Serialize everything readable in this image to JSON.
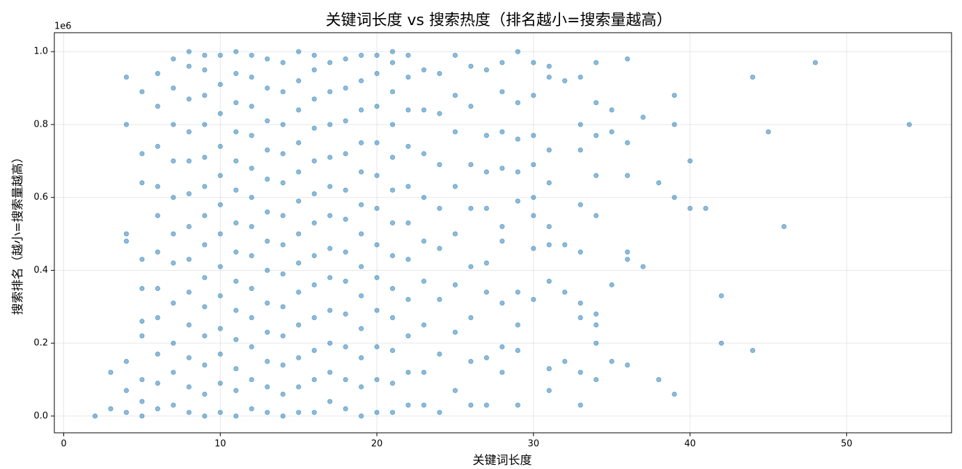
{
  "chart_data": {
    "type": "scatter",
    "title": "关键词长度 vs 搜索热度（排名越小=搜索量越高）",
    "x_label": "关键词长度",
    "y_label": "搜索排名（越小=搜索量越高）",
    "y_offset_label": "1e6",
    "xlim": [
      -0.6,
      56.7
    ],
    "ylim": [
      -0.046,
      1.052
    ],
    "xticks": [
      0,
      10,
      20,
      30,
      40,
      50
    ],
    "yticks": [
      {
        "value": 0,
        "label": "0.0"
      },
      0.2,
      0.4,
      0.6,
      0.8,
      {
        "value": 1,
        "label": "1.0"
      }
    ],
    "grid": true,
    "series": [
      {
        "color": "#1f77b4",
        "x": [
          2,
          3,
          3,
          4,
          4,
          4,
          4,
          4,
          4,
          4,
          5,
          5,
          5,
          5,
          5,
          5,
          5,
          5,
          5,
          5,
          6,
          6,
          6,
          6,
          6,
          6,
          6,
          6,
          6,
          6,
          6,
          7,
          7,
          7,
          7,
          7,
          7,
          7,
          7,
          7,
          7,
          7,
          8,
          8,
          8,
          8,
          8,
          8,
          8,
          8,
          8,
          8,
          8,
          8,
          8,
          9,
          9,
          9,
          9,
          9,
          9,
          9,
          9,
          9,
          9,
          9,
          9,
          9,
          9,
          10,
          10,
          10,
          10,
          10,
          10,
          10,
          10,
          10,
          10,
          10,
          10,
          10,
          11,
          11,
          11,
          11,
          11,
          11,
          11,
          11,
          11,
          11,
          11,
          11,
          11,
          11,
          12,
          12,
          12,
          12,
          12,
          12,
          12,
          12,
          12,
          12,
          12,
          12,
          12,
          13,
          13,
          13,
          13,
          13,
          13,
          13,
          13,
          13,
          13,
          13,
          13,
          13,
          14,
          14,
          14,
          14,
          14,
          14,
          14,
          14,
          14,
          14,
          14,
          14,
          14,
          15,
          15,
          15,
          15,
          15,
          15,
          15,
          15,
          15,
          15,
          15,
          15,
          15,
          16,
          16,
          16,
          16,
          16,
          16,
          16,
          16,
          16,
          16,
          16,
          16,
          16,
          17,
          17,
          17,
          17,
          17,
          17,
          17,
          17,
          17,
          17,
          17,
          17,
          18,
          18,
          18,
          18,
          18,
          18,
          18,
          18,
          18,
          18,
          18,
          18,
          19,
          19,
          19,
          19,
          19,
          19,
          19,
          19,
          19,
          19,
          19,
          19,
          19,
          20,
          20,
          20,
          20,
          20,
          20,
          20,
          20,
          20,
          20,
          20,
          20,
          21,
          21,
          21,
          21,
          21,
          21,
          21,
          21,
          21,
          21,
          21,
          21,
          21,
          22,
          22,
          22,
          22,
          22,
          22,
          22,
          22,
          22,
          22,
          22,
          23,
          23,
          23,
          23,
          23,
          23,
          23,
          23,
          23,
          24,
          24,
          24,
          24,
          24,
          24,
          24,
          24,
          25,
          25,
          25,
          25,
          25,
          25,
          25,
          25,
          26,
          26,
          26,
          26,
          26,
          26,
          26,
          26,
          27,
          27,
          27,
          27,
          27,
          27,
          27,
          27,
          28,
          28,
          28,
          28,
          28,
          28,
          28,
          28,
          28,
          29,
          29,
          29,
          29,
          29,
          29,
          29,
          29,
          29,
          30,
          30,
          30,
          30,
          30,
          30,
          30,
          30,
          31,
          31,
          31,
          31,
          31,
          31,
          31,
          31,
          31,
          32,
          32,
          32,
          32,
          33,
          33,
          33,
          33,
          33,
          33,
          33,
          33,
          33,
          34,
          34,
          34,
          34,
          34,
          34,
          34,
          34,
          34,
          35,
          35,
          35,
          35,
          36,
          36,
          36,
          36,
          36,
          36,
          37,
          37,
          38,
          38,
          39,
          39,
          39,
          39,
          40,
          40,
          41,
          42,
          42,
          44,
          44,
          45,
          46,
          48,
          54
        ],
        "values": [
          0.0,
          0.02,
          0.12,
          0.01,
          0.07,
          0.15,
          0.48,
          0.5,
          0.8,
          0.93,
          0.0,
          0.04,
          0.1,
          0.22,
          0.26,
          0.35,
          0.43,
          0.64,
          0.72,
          0.89,
          0.02,
          0.09,
          0.17,
          0.27,
          0.35,
          0.45,
          0.55,
          0.63,
          0.74,
          0.85,
          0.94,
          0.03,
          0.12,
          0.2,
          0.31,
          0.42,
          0.5,
          0.6,
          0.7,
          0.8,
          0.9,
          0.98,
          0.01,
          0.08,
          0.16,
          0.25,
          0.34,
          0.43,
          0.52,
          0.61,
          0.7,
          0.78,
          0.87,
          0.96,
          1.0,
          0.0,
          0.06,
          0.14,
          0.22,
          0.3,
          0.38,
          0.47,
          0.55,
          0.63,
          0.71,
          0.8,
          0.88,
          0.95,
          0.99,
          0.01,
          0.09,
          0.17,
          0.24,
          0.33,
          0.41,
          0.5,
          0.58,
          0.66,
          0.74,
          0.83,
          0.91,
          0.99,
          0.0,
          0.07,
          0.13,
          0.21,
          0.29,
          0.37,
          0.45,
          0.53,
          0.62,
          0.7,
          0.78,
          0.86,
          0.94,
          1.0,
          0.02,
          0.1,
          0.19,
          0.27,
          0.35,
          0.44,
          0.52,
          0.6,
          0.68,
          0.77,
          0.85,
          0.93,
          0.99,
          0.01,
          0.08,
          0.15,
          0.23,
          0.31,
          0.4,
          0.48,
          0.56,
          0.65,
          0.73,
          0.81,
          0.9,
          0.98,
          0.0,
          0.06,
          0.14,
          0.22,
          0.3,
          0.39,
          0.47,
          0.55,
          0.64,
          0.72,
          0.8,
          0.89,
          0.97,
          0.01,
          0.08,
          0.16,
          0.25,
          0.34,
          0.42,
          0.5,
          0.59,
          0.67,
          0.75,
          0.84,
          0.92,
          1.0,
          0.01,
          0.1,
          0.18,
          0.27,
          0.36,
          0.44,
          0.53,
          0.61,
          0.7,
          0.79,
          0.87,
          0.95,
          0.99,
          0.04,
          0.12,
          0.2,
          0.29,
          0.38,
          0.46,
          0.55,
          0.63,
          0.71,
          0.8,
          0.89,
          0.97,
          0.02,
          0.1,
          0.19,
          0.28,
          0.37,
          0.45,
          0.54,
          0.62,
          0.72,
          0.81,
          0.9,
          0.98,
          0.0,
          0.08,
          0.16,
          0.24,
          0.33,
          0.41,
          0.5,
          0.58,
          0.67,
          0.75,
          0.84,
          0.92,
          0.99,
          0.01,
          0.1,
          0.19,
          0.29,
          0.38,
          0.47,
          0.57,
          0.66,
          0.75,
          0.85,
          0.94,
          0.99,
          0.01,
          0.09,
          0.18,
          0.27,
          0.35,
          0.44,
          0.53,
          0.62,
          0.71,
          0.8,
          0.89,
          0.97,
          1.0,
          0.03,
          0.12,
          0.22,
          0.32,
          0.43,
          0.53,
          0.63,
          0.74,
          0.84,
          0.93,
          0.99,
          0.03,
          0.12,
          0.25,
          0.37,
          0.48,
          0.6,
          0.72,
          0.84,
          0.95,
          0.01,
          0.17,
          0.32,
          0.46,
          0.57,
          0.69,
          0.83,
          0.94,
          0.07,
          0.23,
          0.36,
          0.5,
          0.63,
          0.78,
          0.88,
          0.99,
          0.03,
          0.15,
          0.27,
          0.41,
          0.57,
          0.69,
          0.85,
          0.96,
          0.03,
          0.16,
          0.34,
          0.42,
          0.57,
          0.67,
          0.77,
          0.95,
          0.12,
          0.19,
          0.31,
          0.48,
          0.52,
          0.68,
          0.78,
          0.89,
          0.97,
          0.03,
          0.18,
          0.25,
          0.34,
          0.59,
          0.67,
          0.76,
          0.86,
          1.0,
          0.32,
          0.46,
          0.55,
          0.6,
          0.69,
          0.77,
          0.88,
          0.97,
          0.07,
          0.13,
          0.37,
          0.47,
          0.52,
          0.64,
          0.73,
          0.93,
          0.96,
          0.15,
          0.34,
          0.47,
          0.92,
          0.03,
          0.12,
          0.27,
          0.31,
          0.45,
          0.58,
          0.73,
          0.8,
          0.93,
          0.1,
          0.2,
          0.25,
          0.28,
          0.55,
          0.66,
          0.77,
          0.86,
          0.97,
          0.15,
          0.36,
          0.78,
          0.84,
          0.14,
          0.43,
          0.45,
          0.66,
          0.75,
          0.98,
          0.41,
          0.82,
          0.1,
          0.64,
          0.06,
          0.6,
          0.8,
          0.88,
          0.57,
          0.7,
          0.57,
          0.2,
          0.33,
          0.18,
          0.93,
          0.78,
          0.52,
          0.97,
          0.8
        ]
      }
    ]
  }
}
